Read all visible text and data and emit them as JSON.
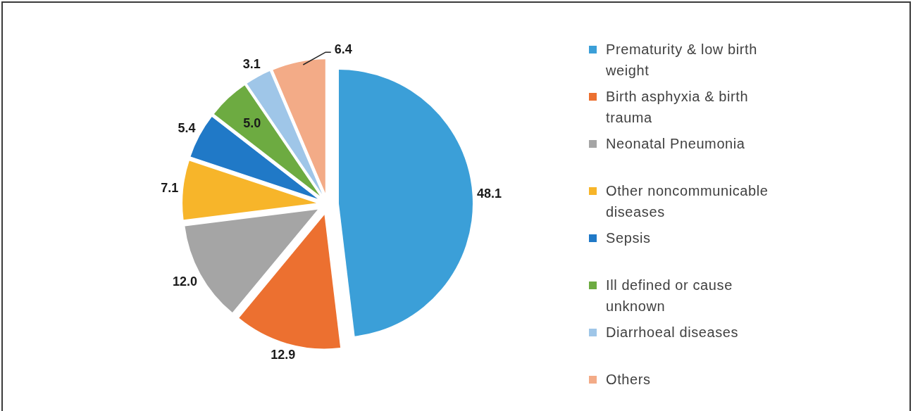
{
  "chart_data": {
    "type": "pie",
    "categories": [
      "Prematurity & low birth weight",
      "Birth asphyxia & birth trauma",
      "Neonatal Pneumonia",
      "Other noncommunicable diseases",
      "Sepsis",
      "Ill defined or cause unknown",
      "Diarrhoeal diseases",
      "Others"
    ],
    "values": [
      48.1,
      12.9,
      12.0,
      7.1,
      5.4,
      5.0,
      3.1,
      6.4
    ],
    "colors": [
      "#3b9fd8",
      "#ec7030",
      "#a5a5a5",
      "#f7b52a",
      "#2079c7",
      "#6dab41",
      "#9fc6e8",
      "#f3ab87"
    ],
    "value_labels": [
      "48.1",
      "12.9",
      "12.0",
      "7.1",
      "5.4",
      "5.0",
      "3.1",
      "6.4"
    ],
    "legend": "right"
  }
}
